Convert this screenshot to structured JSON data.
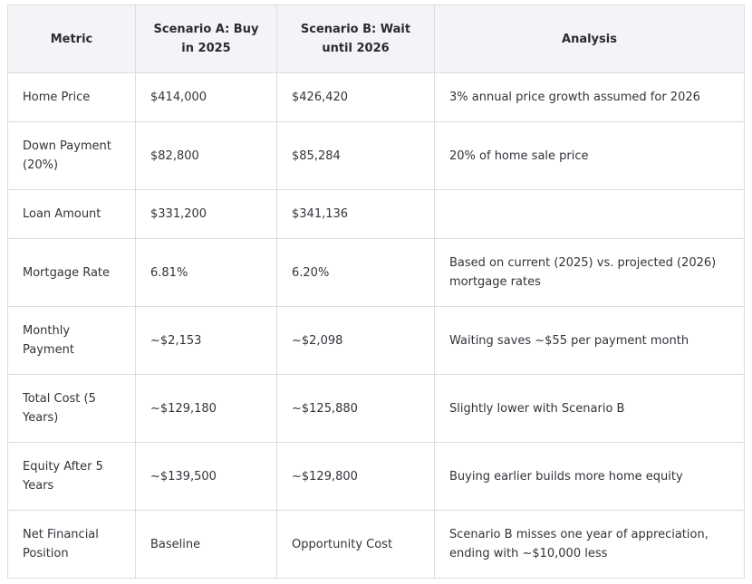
{
  "table": {
    "headers": [
      "Metric",
      "Scenario A: Buy in 2025",
      "Scenario B: Wait until 2026",
      "Analysis"
    ],
    "rows": [
      [
        "Home Price",
        "$414,000",
        "$426,420",
        "3% annual price growth assumed for 2026"
      ],
      [
        "Down Payment (20%)",
        "$82,800",
        "$85,284",
        "20% of home sale price"
      ],
      [
        "Loan Amount",
        "$331,200",
        "$341,136",
        ""
      ],
      [
        "Mortgage Rate",
        "6.81%",
        "6.20%",
        "Based on current (2025) vs. projected (2026) mortgage rates"
      ],
      [
        "Monthly Payment",
        "~$2,153",
        "~$2,098",
        "Waiting saves ~$55 per payment month"
      ],
      [
        "Total Cost (5 Years)",
        "~$129,180",
        "~$125,880",
        "Slightly lower with Scenario B"
      ],
      [
        "Equity After 5 Years",
        "~$139,500",
        "~$129,800",
        "Buying earlier builds more home equity"
      ],
      [
        "Net Financial Position",
        "Baseline",
        "Opportunity Cost",
        "Scenario B misses one year of appreciation, ending with ~$10,000 less"
      ]
    ]
  }
}
